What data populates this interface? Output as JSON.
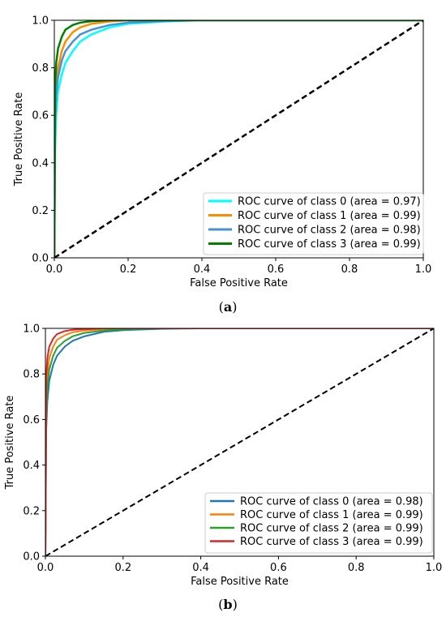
{
  "chart_data": [
    {
      "type": "line",
      "xlabel": "False Positive Rate",
      "ylabel": "True Positive Rate",
      "xlim": [
        0.0,
        1.0
      ],
      "ylim": [
        0.0,
        1.0
      ],
      "xticks": [
        "0.0",
        "0.2",
        "0.4",
        "0.6",
        "0.8",
        "1.0"
      ],
      "yticks": [
        "0.0",
        "0.2",
        "0.4",
        "0.6",
        "0.8",
        "1.0"
      ],
      "grid": false,
      "legend_position": "lower-right",
      "caption_label": "a",
      "diagonal": {
        "x": [
          0,
          1
        ],
        "y": [
          0,
          1
        ],
        "style": "dashed",
        "color": "#000000"
      },
      "series": [
        {
          "name": "ROC curve of class 0 (area = 0.97)",
          "color": "#00FFFF",
          "x": [
            0,
            0.002,
            0.005,
            0.01,
            0.02,
            0.03,
            0.05,
            0.07,
            0.1,
            0.15,
            0.2,
            0.3,
            0.4,
            1.0
          ],
          "y": [
            0,
            0.45,
            0.6,
            0.7,
            0.77,
            0.82,
            0.87,
            0.91,
            0.94,
            0.97,
            0.985,
            0.995,
            1.0,
            1.0
          ]
        },
        {
          "name": "ROC curve of class 1 (area = 0.99)",
          "color": "#FF8C00",
          "x": [
            0,
            0.002,
            0.005,
            0.01,
            0.02,
            0.03,
            0.05,
            0.07,
            0.1,
            0.15,
            0.2,
            0.3,
            1.0
          ],
          "y": [
            0,
            0.6,
            0.72,
            0.8,
            0.87,
            0.91,
            0.95,
            0.97,
            0.985,
            0.995,
            1.0,
            1.0,
            1.0
          ]
        },
        {
          "name": "ROC curve of class 2 (area = 0.98)",
          "color": "#4A90D9",
          "x": [
            0,
            0.002,
            0.005,
            0.01,
            0.02,
            0.03,
            0.05,
            0.07,
            0.1,
            0.15,
            0.2,
            0.3,
            0.4,
            1.0
          ],
          "y": [
            0,
            0.55,
            0.68,
            0.76,
            0.83,
            0.87,
            0.91,
            0.94,
            0.96,
            0.98,
            0.99,
            0.997,
            1.0,
            1.0
          ]
        },
        {
          "name": "ROC curve of class 3 (area = 0.99)",
          "color": "#008000",
          "x": [
            0,
            0.002,
            0.005,
            0.01,
            0.02,
            0.03,
            0.05,
            0.07,
            0.1,
            0.15,
            0.2,
            1.0
          ],
          "y": [
            0,
            0.72,
            0.82,
            0.88,
            0.93,
            0.96,
            0.98,
            0.99,
            0.996,
            1.0,
            1.0,
            1.0
          ]
        }
      ]
    },
    {
      "type": "line",
      "xlabel": "False Positive Rate",
      "ylabel": "True Positive Rate",
      "xlim": [
        0.0,
        1.0
      ],
      "ylim": [
        0.0,
        1.0
      ],
      "xticks": [
        "0.0",
        "0.2",
        "0.4",
        "0.6",
        "0.8",
        "1.0"
      ],
      "yticks": [
        "0.0",
        "0.2",
        "0.4",
        "0.6",
        "0.8",
        "1.0"
      ],
      "grid": false,
      "legend_position": "lower-right",
      "caption_label": "b",
      "diagonal": {
        "x": [
          0,
          1
        ],
        "y": [
          0,
          1
        ],
        "style": "dashed",
        "color": "#000000"
      },
      "series": [
        {
          "name": "ROC curve of class 0 (area = 0.98)",
          "color": "#1F77B4",
          "x": [
            0,
            0.002,
            0.005,
            0.01,
            0.02,
            0.03,
            0.05,
            0.07,
            0.1,
            0.15,
            0.2,
            0.3,
            0.4,
            1.0
          ],
          "y": [
            0,
            0.55,
            0.68,
            0.77,
            0.84,
            0.88,
            0.92,
            0.945,
            0.965,
            0.985,
            0.992,
            0.998,
            1.0,
            1.0
          ]
        },
        {
          "name": "ROC curve of class 1 (area = 0.99)",
          "color": "#FF7F0E",
          "x": [
            0,
            0.002,
            0.005,
            0.01,
            0.02,
            0.03,
            0.05,
            0.07,
            0.1,
            0.15,
            0.2,
            0.3,
            1.0
          ],
          "y": [
            0,
            0.7,
            0.8,
            0.87,
            0.92,
            0.95,
            0.97,
            0.983,
            0.99,
            0.996,
            1.0,
            1.0,
            1.0
          ]
        },
        {
          "name": "ROC curve of class 2 (area = 0.99)",
          "color": "#2CA02C",
          "x": [
            0,
            0.002,
            0.005,
            0.01,
            0.02,
            0.03,
            0.05,
            0.07,
            0.1,
            0.15,
            0.2,
            0.3,
            1.0
          ],
          "y": [
            0,
            0.62,
            0.74,
            0.82,
            0.88,
            0.915,
            0.945,
            0.965,
            0.98,
            0.99,
            0.995,
            1.0,
            1.0
          ]
        },
        {
          "name": "ROC curve of class 3 (area = 0.99)",
          "color": "#D62728",
          "x": [
            0,
            0.002,
            0.005,
            0.01,
            0.02,
            0.03,
            0.05,
            0.07,
            0.1,
            0.15,
            0.2,
            1.0
          ],
          "y": [
            0,
            0.78,
            0.87,
            0.92,
            0.955,
            0.975,
            0.988,
            0.994,
            0.997,
            1.0,
            1.0,
            1.0
          ]
        }
      ]
    }
  ]
}
